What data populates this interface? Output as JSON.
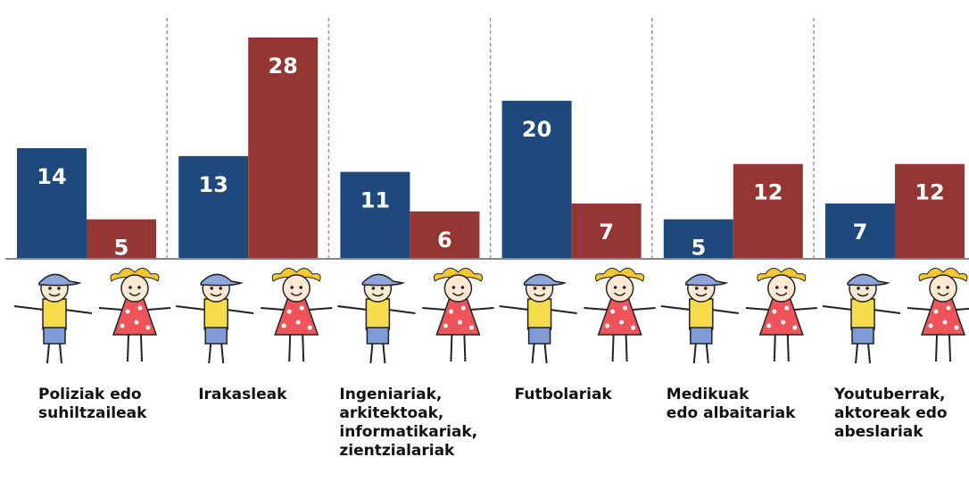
{
  "chart_data": {
    "type": "bar",
    "categories": [
      "Poliziak edo\nsuhiltzaileak",
      "Irakasleak",
      "Ingeniariak,\narkitektoak,\ninformatikariak,\nzientzialariak",
      "Futbolariak",
      "Medikuak\nedo albaitariak",
      "Youtuberrak,\naktoreak  edo\nabeslariak"
    ],
    "series": [
      {
        "color": "#1f487c",
        "values": [
          14,
          13,
          11,
          20,
          5,
          7
        ]
      },
      {
        "color": "#943634",
        "values": [
          5,
          28,
          6,
          7,
          12,
          12
        ]
      }
    ],
    "ylim": [
      0,
      28
    ]
  }
}
